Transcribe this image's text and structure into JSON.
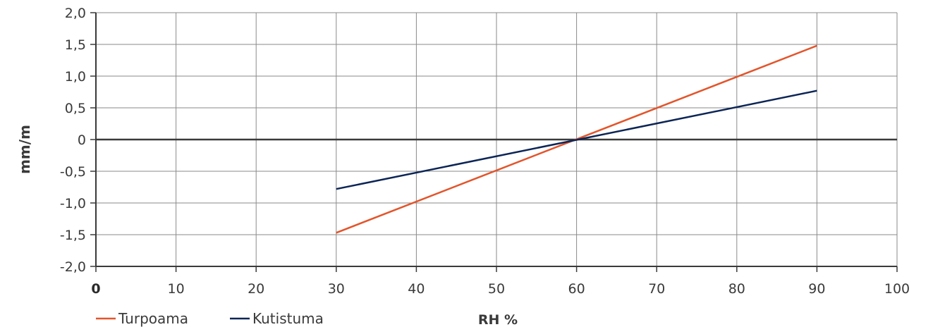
{
  "chart_data": {
    "type": "line",
    "xlabel": "RH %",
    "ylabel": "mm/m",
    "xlim": [
      0,
      100
    ],
    "ylim": [
      -2.0,
      2.0
    ],
    "x_ticks": [
      0,
      10,
      20,
      30,
      40,
      50,
      60,
      70,
      80,
      90,
      100
    ],
    "x_tick_labels": [
      "0",
      "10",
      "20",
      "30",
      "40",
      "50",
      "60",
      "70",
      "80",
      "90",
      "100"
    ],
    "y_ticks": [
      2.0,
      1.5,
      1.0,
      0.5,
      0,
      -0.5,
      -1.0,
      -1.5,
      -2.0
    ],
    "y_tick_labels": [
      "2,0",
      "1,5",
      "1,0",
      "0,5",
      "0",
      "-0,5",
      "-1,0",
      "-1,5",
      "-2,0"
    ],
    "grid": true,
    "legend_position": "bottom-left",
    "series": [
      {
        "name": "Turpoama",
        "color": "#e2552c",
        "x": [
          30,
          90
        ],
        "y": [
          -1.47,
          1.48
        ]
      },
      {
        "name": "Kutistuma",
        "color": "#0c2556",
        "x": [
          30,
          90
        ],
        "y": [
          -0.78,
          0.77
        ]
      }
    ]
  }
}
